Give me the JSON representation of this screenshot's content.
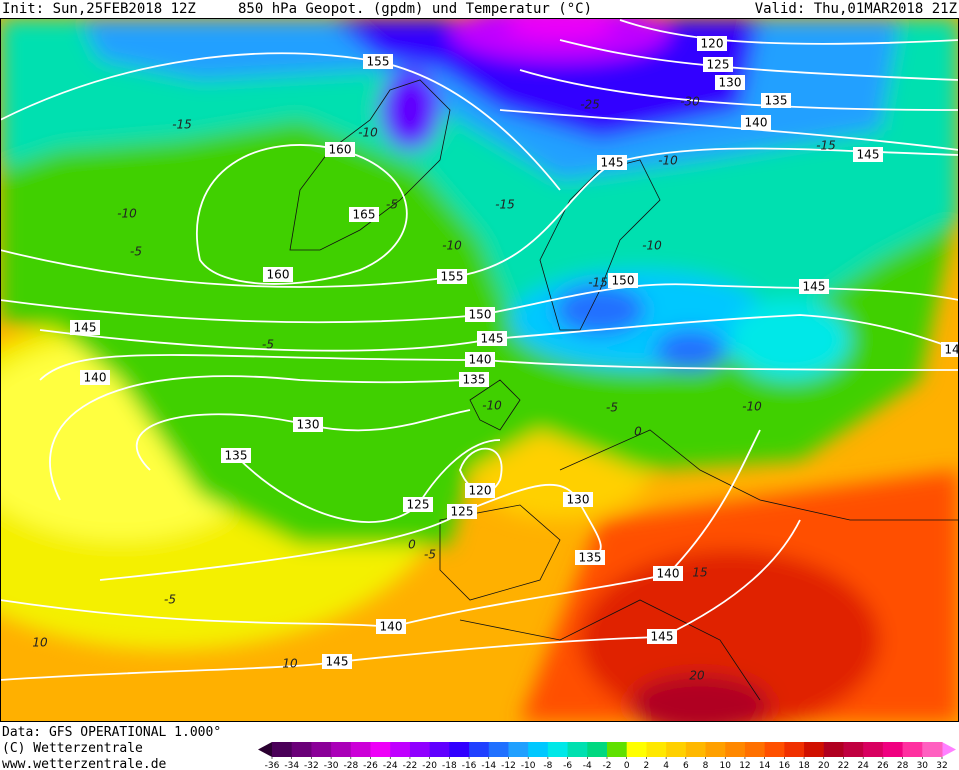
{
  "header": {
    "init": "Init: Sun,25FEB2018 12Z",
    "title": "850 hPa Geopot. (gpdm) und Temperatur (°C)",
    "valid": "Valid: Thu,01MAR2018 21Z"
  },
  "map": {
    "geopotential_labels": [
      "155",
      "120",
      "125",
      "130",
      "135",
      "140",
      "160",
      "145",
      "145",
      "165",
      "160",
      "155",
      "150",
      "145",
      "150",
      "145",
      "145",
      "140",
      "140",
      "135",
      "130",
      "135",
      "120",
      "125",
      "130",
      "125",
      "135",
      "140",
      "145",
      "140",
      "145",
      "14"
    ],
    "temperature_labels": [
      "-15",
      "-10",
      "-25",
      "-30",
      "-15",
      "-10",
      "-10",
      "-5",
      "-15",
      "-10",
      "-5",
      "-10",
      "-15",
      "-5",
      "-10",
      "-5",
      "-10",
      "0",
      "0",
      "-5",
      "-5",
      "15",
      "10",
      "10",
      "20"
    ]
  },
  "footer": {
    "data": "Data: GFS OPERATIONAL 1.000°",
    "copyright": "(C) Wetterzentrale",
    "url": "www.wetterzentrale.de"
  },
  "colorbar": {
    "ticks": [
      -36,
      -34,
      -32,
      -30,
      -28,
      -26,
      -24,
      -22,
      -20,
      -18,
      -16,
      -14,
      -12,
      -10,
      -8,
      -6,
      -4,
      -2,
      0,
      2,
      4,
      6,
      8,
      10,
      12,
      14,
      16,
      18,
      20,
      22,
      24,
      26,
      28,
      30,
      32
    ],
    "colors": [
      "#4a0058",
      "#6a0078",
      "#8a0098",
      "#aa00b8",
      "#cc00d8",
      "#ee00f8",
      "#c000ff",
      "#9000ff",
      "#6000ff",
      "#3000ff",
      "#2040ff",
      "#2070ff",
      "#20a0ff",
      "#00c8ff",
      "#00e8e8",
      "#00e0b0",
      "#00d880",
      "#60e000",
      "#ffff00",
      "#ffe800",
      "#ffd000",
      "#ffb800",
      "#ffa000",
      "#ff8800",
      "#ff7000",
      "#ff5000",
      "#f03000",
      "#d01000",
      "#b00020",
      "#c00040",
      "#d80060",
      "#f00080",
      "#ff30a0",
      "#ff60c0"
    ],
    "under_color": "#2a0030",
    "over_color": "#ff80ff"
  }
}
